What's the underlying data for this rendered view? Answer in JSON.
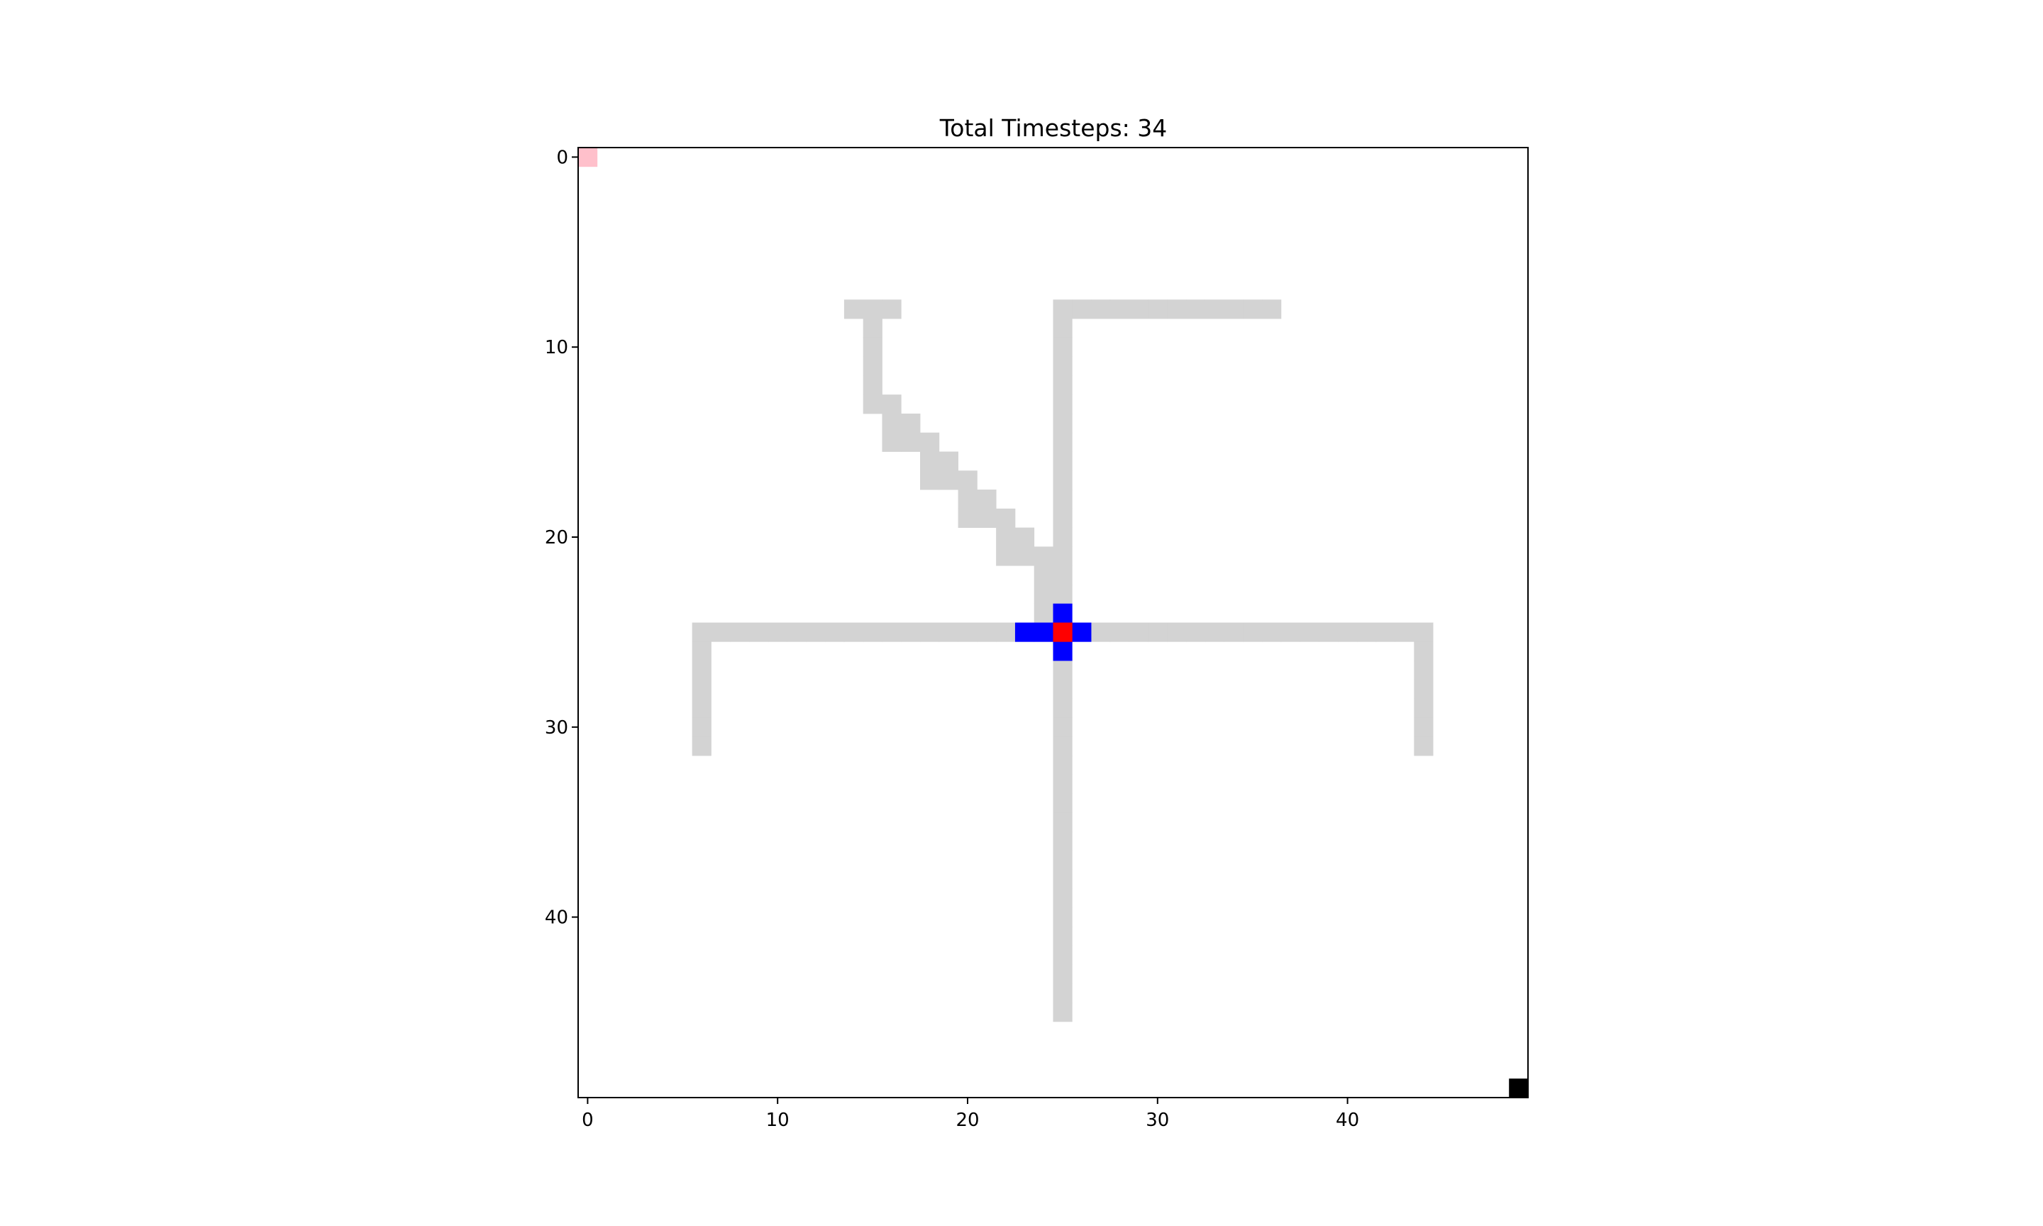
{
  "chart_data": {
    "type": "heatmap",
    "title": "Total Timesteps: 34",
    "xlabel": "",
    "ylabel": "",
    "grid_size": [
      50,
      50
    ],
    "xlim": [
      -0.5,
      49.5
    ],
    "ylim": [
      49.5,
      -0.5
    ],
    "y_inverted": true,
    "x_ticks": [
      0,
      10,
      20,
      30,
      40
    ],
    "y_ticks": [
      0,
      10,
      20,
      30,
      40
    ],
    "grid": false,
    "colors": {
      "background": "#ffffff",
      "path": "#d3d3d3",
      "agent_cross": "#0000ff",
      "agent_center": "#ff0000",
      "start": "#ffc0cb",
      "goal": "#000000"
    },
    "layers": [
      {
        "name": "path",
        "color": "#d3d3d3",
        "cells": [
          [
            14,
            8
          ],
          [
            15,
            8
          ],
          [
            16,
            8
          ],
          [
            15,
            9
          ],
          [
            15,
            10
          ],
          [
            15,
            11
          ],
          [
            15,
            12
          ],
          [
            15,
            13
          ],
          [
            16,
            13
          ],
          [
            16,
            14
          ],
          [
            17,
            14
          ],
          [
            16,
            15
          ],
          [
            17,
            15
          ],
          [
            18,
            15
          ],
          [
            18,
            16
          ],
          [
            19,
            16
          ],
          [
            18,
            17
          ],
          [
            19,
            17
          ],
          [
            20,
            17
          ],
          [
            20,
            18
          ],
          [
            21,
            18
          ],
          [
            20,
            19
          ],
          [
            21,
            19
          ],
          [
            22,
            19
          ],
          [
            22,
            20
          ],
          [
            23,
            20
          ],
          [
            22,
            21
          ],
          [
            23,
            21
          ],
          [
            24,
            21
          ],
          [
            24,
            22
          ],
          [
            24,
            23
          ],
          [
            24,
            24
          ],
          [
            25,
            8
          ],
          [
            26,
            8
          ],
          [
            27,
            8
          ],
          [
            28,
            8
          ],
          [
            29,
            8
          ],
          [
            30,
            8
          ],
          [
            31,
            8
          ],
          [
            32,
            8
          ],
          [
            33,
            8
          ],
          [
            34,
            8
          ],
          [
            35,
            8
          ],
          [
            36,
            8
          ],
          [
            25,
            9
          ],
          [
            25,
            10
          ],
          [
            25,
            11
          ],
          [
            25,
            12
          ],
          [
            25,
            13
          ],
          [
            25,
            14
          ],
          [
            25,
            15
          ],
          [
            25,
            16
          ],
          [
            25,
            17
          ],
          [
            25,
            18
          ],
          [
            25,
            19
          ],
          [
            25,
            20
          ],
          [
            25,
            21
          ],
          [
            25,
            22
          ],
          [
            25,
            23
          ],
          [
            6,
            25
          ],
          [
            7,
            25
          ],
          [
            8,
            25
          ],
          [
            9,
            25
          ],
          [
            10,
            25
          ],
          [
            11,
            25
          ],
          [
            12,
            25
          ],
          [
            13,
            25
          ],
          [
            14,
            25
          ],
          [
            15,
            25
          ],
          [
            16,
            25
          ],
          [
            17,
            25
          ],
          [
            18,
            25
          ],
          [
            19,
            25
          ],
          [
            20,
            25
          ],
          [
            21,
            25
          ],
          [
            22,
            25
          ],
          [
            27,
            25
          ],
          [
            28,
            25
          ],
          [
            29,
            25
          ],
          [
            30,
            25
          ],
          [
            31,
            25
          ],
          [
            32,
            25
          ],
          [
            33,
            25
          ],
          [
            34,
            25
          ],
          [
            35,
            25
          ],
          [
            36,
            25
          ],
          [
            37,
            25
          ],
          [
            38,
            25
          ],
          [
            39,
            25
          ],
          [
            40,
            25
          ],
          [
            41,
            25
          ],
          [
            42,
            25
          ],
          [
            43,
            25
          ],
          [
            44,
            25
          ],
          [
            6,
            26
          ],
          [
            6,
            27
          ],
          [
            6,
            28
          ],
          [
            6,
            29
          ],
          [
            6,
            30
          ],
          [
            6,
            31
          ],
          [
            44,
            26
          ],
          [
            44,
            27
          ],
          [
            44,
            28
          ],
          [
            44,
            29
          ],
          [
            44,
            30
          ],
          [
            44,
            31
          ],
          [
            25,
            27
          ],
          [
            25,
            28
          ],
          [
            25,
            29
          ],
          [
            25,
            30
          ],
          [
            25,
            31
          ],
          [
            25,
            32
          ],
          [
            25,
            33
          ],
          [
            25,
            34
          ],
          [
            25,
            35
          ],
          [
            25,
            36
          ],
          [
            25,
            37
          ],
          [
            25,
            38
          ],
          [
            25,
            39
          ],
          [
            25,
            40
          ],
          [
            25,
            41
          ],
          [
            25,
            42
          ],
          [
            25,
            43
          ],
          [
            25,
            44
          ],
          [
            25,
            45
          ]
        ]
      },
      {
        "name": "agent-cross",
        "color": "#0000ff",
        "cells": [
          [
            23,
            25
          ],
          [
            24,
            25
          ],
          [
            26,
            25
          ],
          [
            25,
            24
          ],
          [
            25,
            26
          ]
        ]
      },
      {
        "name": "agent",
        "color": "#ff0000",
        "cells": [
          [
            25,
            25
          ]
        ]
      },
      {
        "name": "start",
        "color": "#ffc0cb",
        "cells": [
          [
            0,
            0
          ]
        ]
      },
      {
        "name": "goal",
        "color": "#000000",
        "cells": [
          [
            49,
            49
          ]
        ]
      }
    ]
  }
}
